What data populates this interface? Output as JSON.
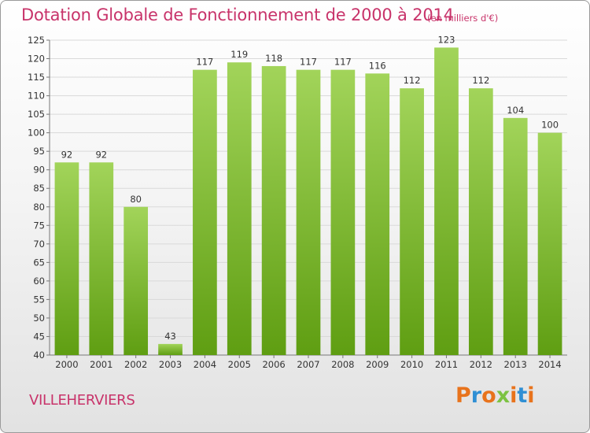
{
  "header": {
    "title": "Dotation Globale de Fonctionnement de 2000 à 2014",
    "unit": "(en milliers d'€)"
  },
  "footer": {
    "commune": "VILLEHERVIERS",
    "brand": "Proxiti"
  },
  "colors": {
    "title": "#c8336a",
    "bar_top": "#a2d45a",
    "bar_bottom": "#5f9e12",
    "logo_letters": [
      "#e8731c",
      "#2f8fd4",
      "#e8731c",
      "#7cc242",
      "#e8731c",
      "#2f8fd4",
      "#e8731c"
    ]
  },
  "chart_data": {
    "type": "bar",
    "title": "Dotation Globale de Fonctionnement de 2000 à 2014",
    "categories": [
      "2000",
      "2001",
      "2002",
      "2003",
      "2004",
      "2005",
      "2006",
      "2007",
      "2008",
      "2009",
      "2010",
      "2011",
      "2012",
      "2013",
      "2014"
    ],
    "values": [
      92,
      92,
      80,
      43,
      117,
      119,
      118,
      117,
      117,
      116,
      112,
      123,
      112,
      104,
      100
    ],
    "ylim": [
      40,
      125
    ],
    "yticks": [
      40,
      45,
      50,
      55,
      60,
      65,
      70,
      75,
      80,
      85,
      90,
      95,
      100,
      105,
      110,
      115,
      120,
      125
    ],
    "grid": true,
    "xlabel": "",
    "ylabel": ""
  }
}
